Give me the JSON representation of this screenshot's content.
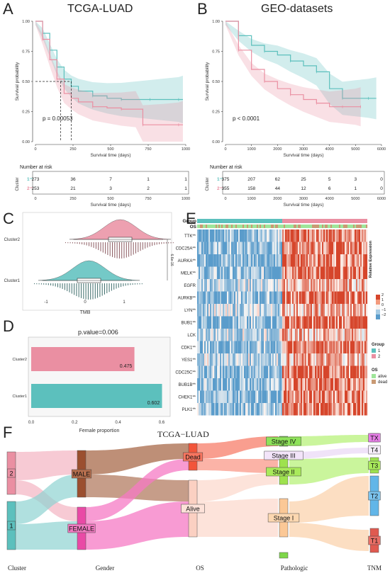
{
  "panels": {
    "A": {
      "letter": "A",
      "title": "TCGA-LUAD",
      "ylabel": "Survival probability",
      "xlabel": "Survival time (days)",
      "pvalue": "p = 0.00053",
      "yticks": [
        "1.00",
        "0.75",
        "0.50",
        "0.25",
        "0.00"
      ],
      "xticks": [
        "0",
        "250",
        "500",
        "750",
        "1000"
      ],
      "risk_title": "Number at risk",
      "risk_ylabel": "Cluster",
      "risk_xlabel": "Survival time (days)",
      "risk_rows": [
        {
          "label": "1",
          "values": [
            "273",
            "36",
            "7",
            "1",
            "1"
          ]
        },
        {
          "label": "2",
          "values": [
            "253",
            "21",
            "3",
            "2",
            "1"
          ]
        }
      ]
    },
    "B": {
      "letter": "B",
      "title": "GEO-datasets",
      "ylabel": "Survival probability",
      "xlabel": "Survival time (days)",
      "pvalue": "p < 0.0001",
      "yticks": [
        "1.00",
        "0.75",
        "0.50",
        "0.25",
        "0.00"
      ],
      "xticks": [
        "0",
        "1000",
        "2000",
        "3000",
        "4000",
        "5000",
        "6000"
      ],
      "risk_title": "Number at risk",
      "risk_ylabel": "Cluster",
      "risk_xlabel": "Survival time (days)",
      "risk_rows": [
        {
          "label": "1",
          "values": [
            "375",
            "207",
            "62",
            "25",
            "5",
            "3",
            "0"
          ]
        },
        {
          "label": "2",
          "values": [
            "355",
            "158",
            "44",
            "12",
            "6",
            "1",
            "0"
          ]
        }
      ]
    },
    "C": {
      "letter": "C",
      "categories": [
        "Cluster2",
        "Cluster1"
      ],
      "xlabel": "TMB",
      "xticks": [
        "-1",
        "0",
        "1"
      ],
      "sig": "6.6e-16"
    },
    "D": {
      "letter": "D",
      "title": "p.value=0.006",
      "xlabel": "Female proportion",
      "xticks": [
        "0.0",
        "0.2",
        "0.4",
        "0.6"
      ],
      "bars": [
        {
          "label": "Cluster2",
          "value": 0.475,
          "text": "0.475"
        },
        {
          "label": "Cluster1",
          "value": 0.602,
          "text": "0.602"
        }
      ]
    },
    "E": {
      "letter": "E",
      "top_labels": [
        "Group",
        "OS"
      ],
      "genes": [
        "TTK**",
        "CDC25A**",
        "AURKA**",
        "MELK**",
        "EGFR",
        "AURKB**",
        "LYN**",
        "BUB1**",
        "LCK",
        "CDK1**",
        "YES1**",
        "CDC25C**",
        "BUB1B**",
        "CHEK1**",
        "PLK1**"
      ],
      "legend_title": "Relative Expression",
      "legend_ticks": [
        "2",
        "1",
        "0",
        "−1",
        "−2"
      ],
      "group_title": "Group",
      "group_items": [
        "1",
        "2"
      ],
      "os_title": "OS",
      "os_items": [
        "alive",
        "dead"
      ]
    },
    "F": {
      "letter": "F",
      "title": "TCGA−LUAD",
      "axis": [
        "Cluster",
        "Gender",
        "OS",
        "Pathologic",
        "TNM"
      ],
      "nodes": {
        "cluster": [
          "2",
          "1"
        ],
        "gender": [
          "MALE",
          "FEMALE"
        ],
        "os": [
          "Dead",
          "Alive"
        ],
        "stage": [
          "Stage IV",
          "Stage III",
          "Stage II",
          "Stage I"
        ],
        "tnm": [
          "TX",
          "T4",
          "T3",
          "T2",
          "T1"
        ]
      }
    }
  },
  "colors": {
    "cluster1": "#5cc0bd",
    "cluster2": "#ea8fa2",
    "heat_high": "#d6452b",
    "heat_low": "#5a9ccb",
    "alive": "#9fe59a",
    "dead": "#c99a74"
  },
  "chart_data": [
    {
      "type": "line",
      "title": "TCGA-LUAD",
      "xlabel": "Survival time (days)",
      "ylabel": "Survival probability",
      "xlim": [
        0,
        1050
      ],
      "ylim": [
        0,
        1
      ],
      "series": [
        {
          "name": "1",
          "x": [
            0,
            50,
            100,
            150,
            200,
            250,
            300,
            400,
            500,
            600,
            700,
            800,
            900,
            1000,
            1030
          ],
          "y": [
            1.0,
            0.9,
            0.76,
            0.62,
            0.52,
            0.46,
            0.42,
            0.38,
            0.36,
            0.35,
            0.35,
            0.35,
            0.35,
            0.35,
            0.35
          ]
        },
        {
          "name": "2",
          "x": [
            0,
            50,
            100,
            150,
            200,
            250,
            300,
            400,
            500,
            600,
            700,
            750,
            900,
            1000,
            1030
          ],
          "y": [
            1.0,
            0.85,
            0.68,
            0.52,
            0.4,
            0.36,
            0.33,
            0.29,
            0.28,
            0.27,
            0.27,
            0.14,
            0.14,
            0.14,
            0.14
          ]
        }
      ]
    },
    {
      "type": "line",
      "title": "GEO-datasets",
      "xlabel": "Survival time (days)",
      "ylabel": "Survival probability",
      "xlim": [
        0,
        6000
      ],
      "ylim": [
        0,
        1
      ],
      "series": [
        {
          "name": "1",
          "x": [
            0,
            500,
            1000,
            1500,
            2000,
            2500,
            3000,
            3500,
            4000,
            4500,
            5000,
            5500,
            5800
          ],
          "y": [
            1.0,
            0.88,
            0.8,
            0.75,
            0.72,
            0.67,
            0.63,
            0.58,
            0.44,
            0.36,
            0.36,
            0.36,
            0.36
          ]
        },
        {
          "name": "2",
          "x": [
            0,
            500,
            1000,
            1500,
            2000,
            2500,
            3000,
            3500,
            4000,
            4500,
            5000,
            5200
          ],
          "y": [
            1.0,
            0.76,
            0.6,
            0.5,
            0.44,
            0.39,
            0.35,
            0.32,
            0.29,
            0.29,
            0.29,
            0.29
          ]
        }
      ]
    },
    {
      "type": "bar",
      "title": "p.value=0.006",
      "xlabel": "Female proportion",
      "categories": [
        "Cluster2",
        "Cluster1"
      ],
      "values": [
        0.475,
        0.602
      ],
      "xlim": [
        0,
        0.62
      ]
    }
  ]
}
